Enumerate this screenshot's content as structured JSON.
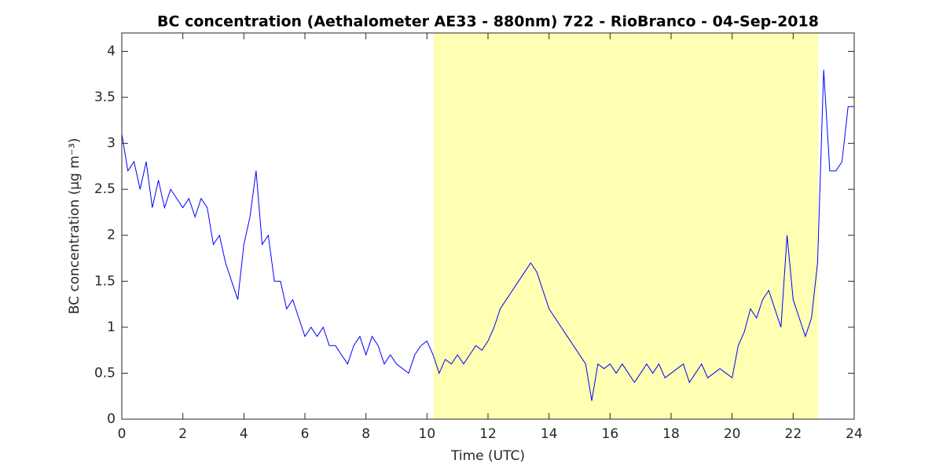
{
  "chart_data": {
    "type": "line",
    "title": "BC concentration (Aethalometer AE33 - 880nm) 722 - RioBranco - 04-Sep-2018",
    "xlabel": "Time (UTC)",
    "ylabel": "BC concentration (μg m⁻³)",
    "xlim": [
      0,
      24
    ],
    "xticks": [
      0,
      2,
      4,
      6,
      8,
      10,
      12,
      14,
      16,
      18,
      20,
      22,
      24
    ],
    "ylim": [
      0,
      4.2
    ],
    "yticks": [
      0,
      0.5,
      1,
      1.5,
      2,
      2.5,
      3,
      3.5,
      4
    ],
    "highlight": {
      "xrange": [
        10.22,
        22.82
      ],
      "color": "#ffffb3"
    },
    "x": [
      0,
      0.2,
      0.4,
      0.6,
      0.8,
      1,
      1.2,
      1.4,
      1.6,
      1.8,
      2,
      2.2,
      2.4,
      2.6,
      2.8,
      3,
      3.2,
      3.4,
      3.6,
      3.8,
      4,
      4.2,
      4.4,
      4.6,
      4.8,
      5,
      5.2,
      5.4,
      5.6,
      5.8,
      6,
      6.2,
      6.4,
      6.6,
      6.8,
      7,
      7.2,
      7.4,
      7.6,
      7.8,
      8,
      8.2,
      8.4,
      8.6,
      8.8,
      9,
      9.2,
      9.4,
      9.6,
      9.8,
      10,
      10.2,
      10.4,
      10.6,
      10.8,
      11,
      11.2,
      11.4,
      11.6,
      11.8,
      12,
      12.2,
      12.4,
      12.6,
      12.8,
      13,
      13.2,
      13.4,
      13.6,
      13.8,
      14,
      14.2,
      14.4,
      14.6,
      14.8,
      15,
      15.2,
      15.4,
      15.6,
      15.8,
      16,
      16.2,
      16.4,
      16.6,
      16.8,
      17,
      17.2,
      17.4,
      17.6,
      17.8,
      18,
      18.2,
      18.4,
      18.6,
      18.8,
      19,
      19.2,
      19.4,
      19.6,
      19.8,
      20,
      20.2,
      20.4,
      20.6,
      20.8,
      21,
      21.2,
      21.4,
      21.6,
      21.8,
      22,
      22.2,
      22.4,
      22.6,
      22.8,
      23,
      23.2,
      23.4,
      23.6,
      23.8,
      24
    ],
    "series": [
      {
        "name": "BC",
        "color": "#0000ff",
        "values": [
          3.1,
          2.7,
          2.8,
          2.5,
          2.8,
          2.3,
          2.6,
          2.3,
          2.5,
          2.4,
          2.3,
          2.4,
          2.2,
          2.4,
          2.3,
          1.9,
          2.0,
          1.7,
          1.5,
          1.3,
          1.9,
          2.2,
          2.7,
          1.9,
          2.0,
          1.5,
          1.5,
          1.2,
          1.3,
          1.1,
          0.9,
          1.0,
          0.9,
          1.0,
          0.8,
          0.8,
          0.7,
          0.6,
          0.8,
          0.9,
          0.7,
          0.9,
          0.8,
          0.6,
          0.7,
          0.6,
          0.55,
          0.5,
          0.7,
          0.8,
          0.85,
          0.7,
          0.5,
          0.65,
          0.6,
          0.7,
          0.6,
          0.7,
          0.8,
          0.75,
          0.85,
          1.0,
          1.2,
          1.3,
          1.4,
          1.5,
          1.6,
          1.7,
          1.6,
          1.4,
          1.2,
          1.1,
          1.0,
          0.9,
          0.8,
          0.7,
          0.6,
          0.2,
          0.6,
          0.55,
          0.6,
          0.5,
          0.6,
          0.5,
          0.4,
          0.5,
          0.6,
          0.5,
          0.6,
          0.45,
          0.5,
          0.55,
          0.6,
          0.4,
          0.5,
          0.6,
          0.45,
          0.5,
          0.55,
          0.5,
          0.45,
          0.8,
          0.95,
          1.2,
          1.1,
          1.3,
          1.4,
          1.2,
          1.0,
          2.0,
          1.3,
          1.1,
          0.9,
          1.1,
          1.7,
          3.8,
          2.7,
          2.7,
          2.8,
          3.4,
          3.4
        ]
      }
    ]
  }
}
